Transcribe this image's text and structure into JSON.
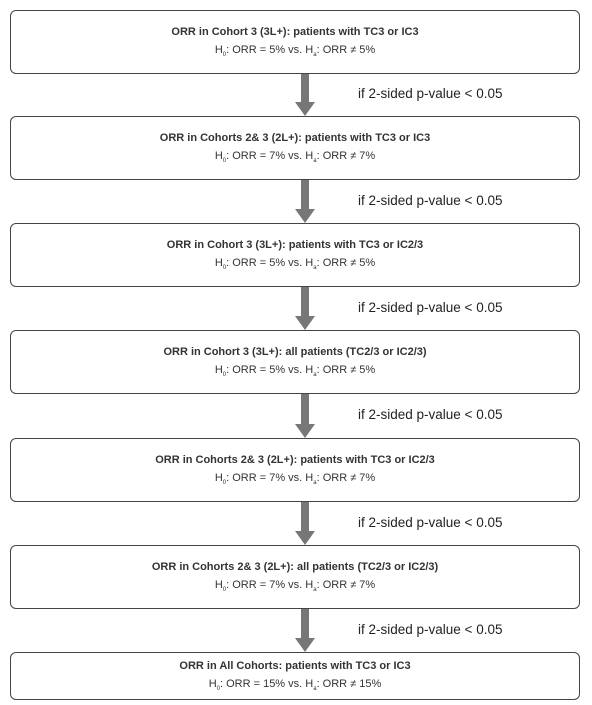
{
  "steps": [
    {
      "title": "ORR in Cohort 3 (3L+): patients with TC3 or IC3",
      "hypothesis": {
        "null_symbol": "H",
        "null_sub": "0",
        "null_text": ": ORR = 5% vs. ",
        "alt_symbol": "H",
        "alt_sub": "a",
        "alt_text": ": ORR ≠ 5%"
      },
      "condition": "if 2-sided p-value < 0.05"
    },
    {
      "title": "ORR in Cohorts 2& 3 (2L+): patients with TC3 or IC3",
      "hypothesis": {
        "null_symbol": "H",
        "null_sub": "0",
        "null_text": ": ORR = 7% vs. ",
        "alt_symbol": "H",
        "alt_sub": "a",
        "alt_text": ": ORR ≠ 7%"
      },
      "condition": "if 2-sided p-value < 0.05"
    },
    {
      "title": "ORR in Cohort 3 (3L+): patients with TC3 or IC2/3",
      "hypothesis": {
        "null_symbol": "H",
        "null_sub": "0",
        "null_text": ": ORR = 5% vs. ",
        "alt_symbol": "H",
        "alt_sub": "a",
        "alt_text": ": ORR ≠ 5%"
      },
      "condition": "if 2-sided p-value < 0.05"
    },
    {
      "title": "ORR in Cohort 3 (3L+): all patients (TC2/3 or IC2/3)",
      "hypothesis": {
        "null_symbol": "H",
        "null_sub": "0",
        "null_text": ": ORR = 5% vs. ",
        "alt_symbol": "H",
        "alt_sub": "a",
        "alt_text": ": ORR ≠ 5%"
      },
      "condition": "if 2-sided p-value < 0.05"
    },
    {
      "title": "ORR in Cohorts 2& 3 (2L+): patients with TC3 or IC2/3",
      "hypothesis": {
        "null_symbol": "H",
        "null_sub": "0",
        "null_text": ": ORR = 7% vs. ",
        "alt_symbol": "H",
        "alt_sub": "a",
        "alt_text": ": ORR ≠ 7%"
      },
      "condition": "if 2-sided p-value < 0.05"
    },
    {
      "title": "ORR in Cohorts 2& 3 (2L+): all patients (TC2/3 or IC2/3)",
      "hypothesis": {
        "null_symbol": "H",
        "null_sub": "0",
        "null_text": ": ORR = 7% vs. ",
        "alt_symbol": "H",
        "alt_sub": "a",
        "alt_text": ": ORR ≠ 7%"
      },
      "condition": "if 2-sided p-value < 0.05"
    },
    {
      "title": "ORR in All Cohorts: patients with TC3 or IC3",
      "hypothesis": {
        "null_symbol": "H",
        "null_sub": "0",
        "null_text": ": ORR = 15% vs. ",
        "alt_symbol": "H",
        "alt_sub": "a",
        "alt_text": ": ORR ≠ 15%"
      }
    }
  ]
}
